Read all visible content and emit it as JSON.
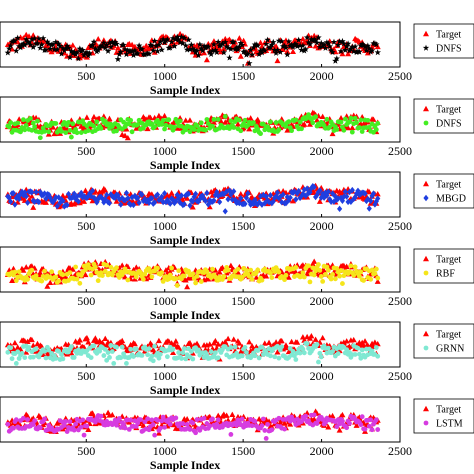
{
  "chart_data": [
    {
      "type": "scatter",
      "xlabel": "Sample Index",
      "xticks": [
        500,
        1000,
        1500,
        2000,
        2500
      ],
      "xlim": [
        0,
        2500
      ],
      "series": [
        {
          "name": "Target",
          "color": "#ff0000",
          "marker": "triangle",
          "profile": [
            [
              0,
              0.45
            ],
            [
              120,
              0.6
            ],
            [
              250,
              0.5
            ],
            [
              400,
              0.35
            ],
            [
              480,
              0.3
            ],
            [
              600,
              0.55
            ],
            [
              700,
              0.45
            ],
            [
              800,
              0.35
            ],
            [
              950,
              0.5
            ],
            [
              1100,
              0.65
            ],
            [
              1200,
              0.4
            ],
            [
              1350,
              0.45
            ],
            [
              1450,
              0.55
            ],
            [
              1550,
              0.35
            ],
            [
              1650,
              0.5
            ],
            [
              1800,
              0.45
            ],
            [
              1950,
              0.6
            ],
            [
              2050,
              0.45
            ],
            [
              2200,
              0.5
            ],
            [
              2360,
              0.4
            ]
          ]
        },
        {
          "name": "DNFS",
          "color": "#000000",
          "marker": "star",
          "profile": [
            [
              0,
              0.42
            ],
            [
              120,
              0.58
            ],
            [
              250,
              0.48
            ],
            [
              400,
              0.33
            ],
            [
              480,
              0.3
            ],
            [
              600,
              0.52
            ],
            [
              700,
              0.43
            ],
            [
              800,
              0.33
            ],
            [
              950,
              0.48
            ],
            [
              1100,
              0.62
            ],
            [
              1200,
              0.38
            ],
            [
              1350,
              0.43
            ],
            [
              1450,
              0.53
            ],
            [
              1550,
              0.33
            ],
            [
              1650,
              0.48
            ],
            [
              1800,
              0.43
            ],
            [
              1950,
              0.58
            ],
            [
              2050,
              0.43
            ],
            [
              2200,
              0.48
            ],
            [
              2360,
              0.38
            ]
          ]
        }
      ]
    },
    {
      "type": "scatter",
      "xlabel": "Sample Index",
      "xticks": [
        500,
        1000,
        1500,
        2000,
        2500
      ],
      "xlim": [
        0,
        2500
      ],
      "series": [
        {
          "name": "Target",
          "color": "#ff0000",
          "marker": "triangle",
          "profile": [
            [
              0,
              0.35
            ],
            [
              150,
              0.45
            ],
            [
              300,
              0.3
            ],
            [
              480,
              0.4
            ],
            [
              600,
              0.45
            ],
            [
              800,
              0.4
            ],
            [
              1000,
              0.45
            ],
            [
              1200,
              0.35
            ],
            [
              1400,
              0.5
            ],
            [
              1600,
              0.35
            ],
            [
              1800,
              0.4
            ],
            [
              1950,
              0.55
            ],
            [
              2050,
              0.4
            ],
            [
              2200,
              0.45
            ],
            [
              2360,
              0.35
            ]
          ]
        },
        {
          "name": "DNFS",
          "color": "#44ee22",
          "marker": "circle",
          "profile": [
            [
              0,
              0.3
            ],
            [
              150,
              0.4
            ],
            [
              300,
              0.28
            ],
            [
              480,
              0.35
            ],
            [
              600,
              0.4
            ],
            [
              800,
              0.36
            ],
            [
              1000,
              0.4
            ],
            [
              1200,
              0.32
            ],
            [
              1400,
              0.44
            ],
            [
              1600,
              0.32
            ],
            [
              1800,
              0.36
            ],
            [
              1950,
              0.5
            ],
            [
              2050,
              0.36
            ],
            [
              2200,
              0.4
            ],
            [
              2360,
              0.32
            ]
          ]
        }
      ]
    },
    {
      "type": "scatter",
      "xlabel": "Sample Index",
      "xticks": [
        500,
        1000,
        1500,
        2000,
        2500
      ],
      "xlim": [
        0,
        2500
      ],
      "series": [
        {
          "name": "Target",
          "color": "#ff0000",
          "marker": "triangle",
          "profile": [
            [
              0,
              0.4
            ],
            [
              150,
              0.5
            ],
            [
              300,
              0.35
            ],
            [
              480,
              0.45
            ],
            [
              600,
              0.5
            ],
            [
              800,
              0.4
            ],
            [
              1000,
              0.45
            ],
            [
              1200,
              0.4
            ],
            [
              1400,
              0.5
            ],
            [
              1600,
              0.4
            ],
            [
              1800,
              0.45
            ],
            [
              1950,
              0.6
            ],
            [
              2050,
              0.45
            ],
            [
              2200,
              0.5
            ],
            [
              2360,
              0.4
            ]
          ]
        },
        {
          "name": "MBGD",
          "color": "#1f3fe0",
          "marker": "diamond",
          "profile": [
            [
              0,
              0.38
            ],
            [
              150,
              0.47
            ],
            [
              300,
              0.33
            ],
            [
              480,
              0.43
            ],
            [
              600,
              0.47
            ],
            [
              800,
              0.38
            ],
            [
              1000,
              0.43
            ],
            [
              1200,
              0.38
            ],
            [
              1400,
              0.47
            ],
            [
              1600,
              0.38
            ],
            [
              1800,
              0.43
            ],
            [
              1950,
              0.56
            ],
            [
              2050,
              0.43
            ],
            [
              2200,
              0.47
            ],
            [
              2360,
              0.38
            ]
          ]
        }
      ]
    },
    {
      "type": "scatter",
      "xlabel": "Sample Index",
      "xticks": [
        500,
        1000,
        1500,
        2000,
        2500
      ],
      "xlim": [
        0,
        2500
      ],
      "series": [
        {
          "name": "Target",
          "color": "#ff0000",
          "marker": "triangle",
          "profile": [
            [
              0,
              0.35
            ],
            [
              150,
              0.45
            ],
            [
              300,
              0.3
            ],
            [
              480,
              0.5
            ],
            [
              600,
              0.55
            ],
            [
              800,
              0.4
            ],
            [
              1000,
              0.45
            ],
            [
              1200,
              0.35
            ],
            [
              1400,
              0.45
            ],
            [
              1600,
              0.4
            ],
            [
              1800,
              0.45
            ],
            [
              1950,
              0.55
            ],
            [
              2050,
              0.45
            ],
            [
              2200,
              0.5
            ],
            [
              2360,
              0.4
            ]
          ]
        },
        {
          "name": "RBF",
          "color": "#f5e51a",
          "marker": "circle",
          "profile": [
            [
              0,
              0.33
            ],
            [
              150,
              0.42
            ],
            [
              300,
              0.3
            ],
            [
              480,
              0.46
            ],
            [
              600,
              0.5
            ],
            [
              800,
              0.38
            ],
            [
              1000,
              0.42
            ],
            [
              1200,
              0.33
            ],
            [
              1400,
              0.42
            ],
            [
              1600,
              0.38
            ],
            [
              1800,
              0.42
            ],
            [
              1950,
              0.5
            ],
            [
              2050,
              0.42
            ],
            [
              2200,
              0.46
            ],
            [
              2360,
              0.38
            ]
          ]
        }
      ]
    },
    {
      "type": "scatter",
      "xlabel": "Sample Index",
      "xticks": [
        500,
        1000,
        1500,
        2000,
        2500
      ],
      "xlim": [
        0,
        2500
      ],
      "series": [
        {
          "name": "Target",
          "color": "#ff0000",
          "marker": "triangle",
          "profile": [
            [
              0,
              0.4
            ],
            [
              150,
              0.5
            ],
            [
              300,
              0.35
            ],
            [
              480,
              0.5
            ],
            [
              600,
              0.55
            ],
            [
              800,
              0.4
            ],
            [
              1000,
              0.45
            ],
            [
              1200,
              0.4
            ],
            [
              1400,
              0.5
            ],
            [
              1600,
              0.4
            ],
            [
              1800,
              0.45
            ],
            [
              1950,
              0.6
            ],
            [
              2050,
              0.45
            ],
            [
              2200,
              0.5
            ],
            [
              2360,
              0.4
            ]
          ]
        },
        {
          "name": "GRNN",
          "color": "#7fe8d2",
          "marker": "circle",
          "profile": [
            [
              0,
              0.32
            ],
            [
              150,
              0.34
            ],
            [
              300,
              0.3
            ],
            [
              480,
              0.33
            ],
            [
              600,
              0.35
            ],
            [
              800,
              0.32
            ],
            [
              1000,
              0.33
            ],
            [
              1200,
              0.31
            ],
            [
              1400,
              0.34
            ],
            [
              1600,
              0.32
            ],
            [
              1800,
              0.33
            ],
            [
              1950,
              0.42
            ],
            [
              2050,
              0.34
            ],
            [
              2200,
              0.34
            ],
            [
              2360,
              0.32
            ]
          ]
        }
      ]
    },
    {
      "type": "scatter",
      "xlabel": "Sample Index",
      "xticks": [
        500,
        1000,
        1500,
        2000,
        2500
      ],
      "xlim": [
        0,
        2500
      ],
      "series": [
        {
          "name": "Target",
          "color": "#ff0000",
          "marker": "triangle",
          "profile": [
            [
              0,
              0.4
            ],
            [
              150,
              0.5
            ],
            [
              300,
              0.35
            ],
            [
              480,
              0.45
            ],
            [
              600,
              0.55
            ],
            [
              800,
              0.4
            ],
            [
              1000,
              0.45
            ],
            [
              1200,
              0.4
            ],
            [
              1400,
              0.5
            ],
            [
              1600,
              0.4
            ],
            [
              1800,
              0.45
            ],
            [
              1950,
              0.55
            ],
            [
              2050,
              0.45
            ],
            [
              2200,
              0.5
            ],
            [
              2360,
              0.4
            ]
          ]
        },
        {
          "name": "LSTM",
          "color": "#d63ce0",
          "marker": "circle",
          "profile": [
            [
              0,
              0.37
            ],
            [
              150,
              0.46
            ],
            [
              300,
              0.33
            ],
            [
              480,
              0.42
            ],
            [
              600,
              0.5
            ],
            [
              800,
              0.37
            ],
            [
              1000,
              0.42
            ],
            [
              1200,
              0.37
            ],
            [
              1400,
              0.46
            ],
            [
              1600,
              0.37
            ],
            [
              1800,
              0.42
            ],
            [
              1950,
              0.5
            ],
            [
              2050,
              0.42
            ],
            [
              2200,
              0.46
            ],
            [
              2360,
              0.37
            ]
          ]
        }
      ]
    }
  ]
}
